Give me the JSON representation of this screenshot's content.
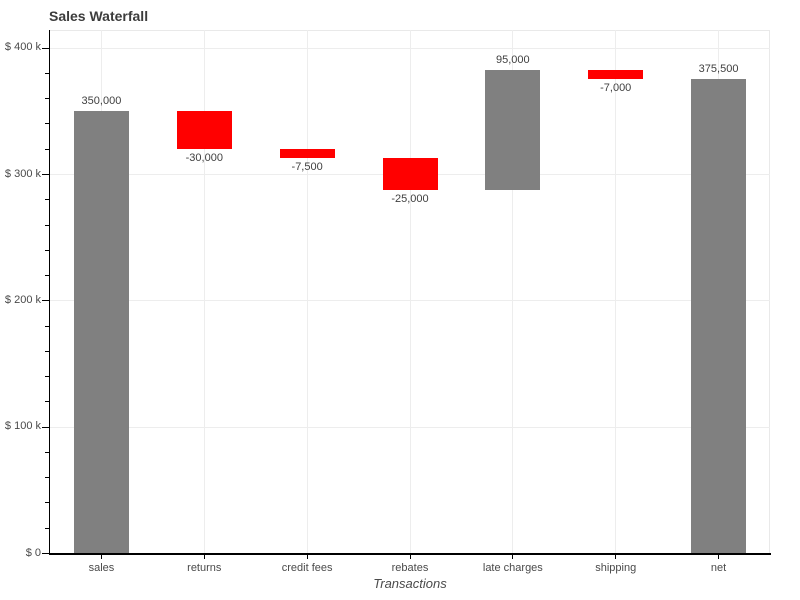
{
  "chart_data": {
    "type": "waterfall",
    "title": "Sales Waterfall",
    "xlabel": "Transactions",
    "ylabel": "",
    "categories": [
      "sales",
      "returns",
      "credit fees",
      "rebates",
      "late charges",
      "shipping",
      "net"
    ],
    "values": [
      350000,
      -30000,
      -7500,
      -25000,
      95000,
      -7000,
      375500
    ],
    "value_labels": [
      "350,000",
      "-30,000",
      "-7,500",
      "-25,000",
      "95,000",
      "-7,000",
      "375,500"
    ],
    "bar_types": [
      "increase",
      "decrease",
      "decrease",
      "decrease",
      "increase",
      "decrease",
      "total"
    ],
    "cumulative": [
      350000,
      320000,
      312500,
      287500,
      382500,
      375500,
      375500
    ],
    "colors": {
      "increase": "#808080",
      "decrease": "#ff0000",
      "total": "#808080"
    },
    "ylim": [
      0,
      414000
    ],
    "ytick_values": [
      0,
      100000,
      200000,
      300000,
      400000
    ],
    "ytick_labels": [
      "$ 0",
      "$ 100 k",
      "$ 200 k",
      "$ 300 k",
      "$ 400 k"
    ],
    "ytick_minor_step": 20000,
    "grid": true,
    "legend": "none"
  }
}
